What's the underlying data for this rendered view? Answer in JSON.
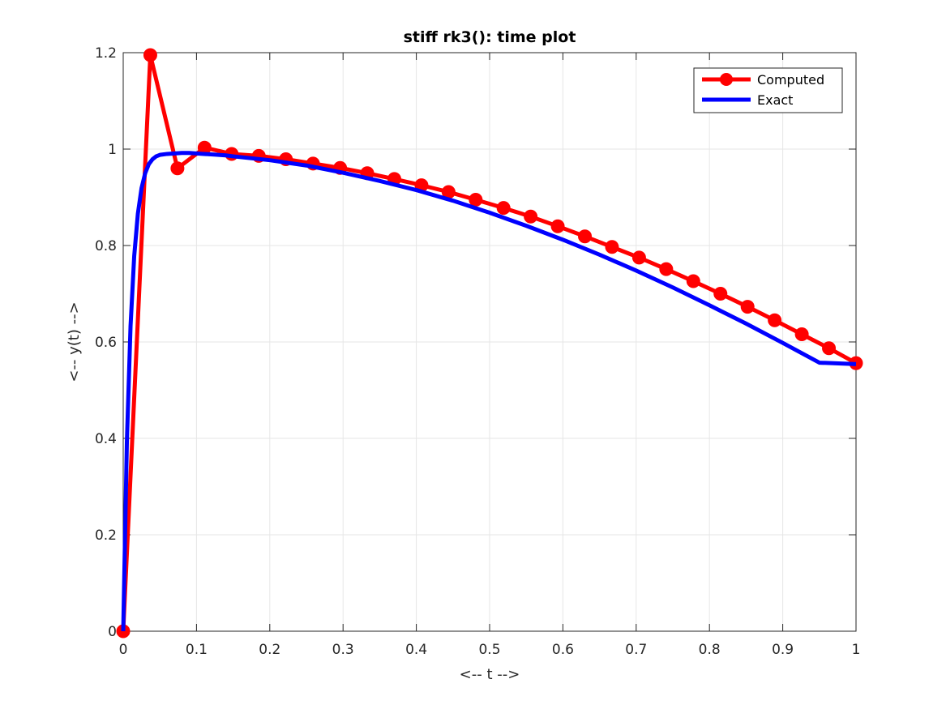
{
  "chart_data": {
    "type": "line",
    "title": "stiff rk3(): time plot",
    "xlabel": "<-- t -->",
    "ylabel": "<-- y(t) -->",
    "xlim": [
      0,
      1
    ],
    "ylim": [
      0,
      1.2
    ],
    "xticks": [
      0,
      0.1,
      0.2,
      0.3,
      0.4,
      0.5,
      0.6,
      0.7,
      0.8,
      0.9,
      1
    ],
    "xtick_labels": [
      "0",
      "0.1",
      "0.2",
      "0.3",
      "0.4",
      "0.5",
      "0.6",
      "0.7",
      "0.8",
      "0.9",
      "1"
    ],
    "yticks": [
      0,
      0.2,
      0.4,
      0.6,
      0.8,
      1,
      1.2
    ],
    "ytick_labels": [
      "0",
      "0.2",
      "0.4",
      "0.6",
      "0.8",
      "1",
      "1.2"
    ],
    "grid": true,
    "legend_position": "top-right",
    "series": [
      {
        "name": "Computed",
        "color": "#ff0000",
        "marker": "circle",
        "x": [
          0,
          0.037,
          0.074,
          0.111,
          0.148,
          0.185,
          0.222,
          0.259,
          0.296,
          0.333,
          0.37,
          0.407,
          0.444,
          0.481,
          0.519,
          0.556,
          0.593,
          0.63,
          0.667,
          0.704,
          0.741,
          0.778,
          0.815,
          0.852,
          0.889,
          0.926,
          0.963,
          1
        ],
        "y": [
          0,
          1.195,
          0.96,
          1.003,
          0.99,
          0.986,
          0.979,
          0.97,
          0.961,
          0.95,
          0.938,
          0.925,
          0.911,
          0.895,
          0.878,
          0.86,
          0.84,
          0.819,
          0.797,
          0.775,
          0.751,
          0.726,
          0.7,
          0.673,
          0.645,
          0.616,
          0.587,
          0.556
        ]
      },
      {
        "name": "Exact",
        "color": "#0000ff",
        "marker": "none",
        "x": [
          0,
          0.005,
          0.01,
          0.015,
          0.02,
          0.025,
          0.03,
          0.035,
          0.04,
          0.045,
          0.05,
          0.06,
          0.07,
          0.08,
          0.09,
          0.1,
          0.11,
          0.12,
          0.13,
          0.14,
          0.15,
          0.2,
          0.25,
          0.3,
          0.35,
          0.4,
          0.45,
          0.5,
          0.55,
          0.6,
          0.65,
          0.7,
          0.75,
          0.8,
          0.85,
          0.9,
          0.95,
          1
        ],
        "y": [
          0,
          0.393,
          0.633,
          0.778,
          0.866,
          0.919,
          0.95,
          0.969,
          0.979,
          0.985,
          0.988,
          0.99,
          0.991,
          0.992,
          0.992,
          0.991,
          0.99,
          0.989,
          0.988,
          0.987,
          0.985,
          0.977,
          0.966,
          0.951,
          0.934,
          0.915,
          0.893,
          0.868,
          0.841,
          0.812,
          0.781,
          0.748,
          0.713,
          0.676,
          0.638,
          0.598,
          0.557,
          0.554
        ]
      }
    ]
  }
}
